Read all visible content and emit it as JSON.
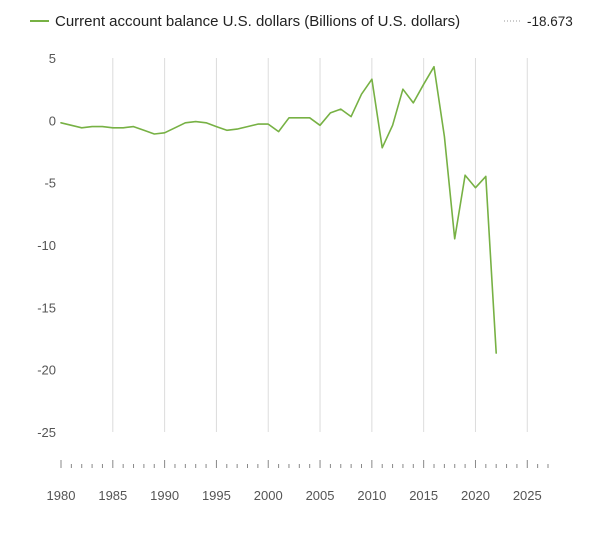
{
  "chart_data": {
    "type": "line",
    "legend": {
      "placement": "top-left",
      "series_label": "Current account balance U.S. dollars (Billions of U.S. dollars)",
      "value_label": "-18.673"
    },
    "series": [
      {
        "name": "Current account balance U.S. dollars (Billions of U.S. dollars)",
        "color": "#77b144",
        "x": [
          1980,
          1981,
          1982,
          1983,
          1984,
          1985,
          1986,
          1987,
          1988,
          1989,
          1990,
          1991,
          1992,
          1993,
          1994,
          1995,
          1996,
          1997,
          1998,
          1999,
          2000,
          2001,
          2002,
          2003,
          2004,
          2005,
          2006,
          2007,
          2008,
          2009,
          2010,
          2011,
          2012,
          2013,
          2014,
          2015,
          2016,
          2017,
          2018,
          2019,
          2020,
          2021,
          2022
        ],
        "values": [
          -0.2,
          -0.4,
          -0.6,
          -0.5,
          -0.5,
          -0.6,
          -0.6,
          -0.5,
          -0.8,
          -1.1,
          -1.0,
          -0.6,
          -0.2,
          -0.1,
          -0.2,
          -0.5,
          -0.8,
          -0.7,
          -0.5,
          -0.3,
          -0.3,
          -0.9,
          0.2,
          0.2,
          0.2,
          -0.4,
          0.6,
          0.9,
          0.3,
          2.1,
          3.3,
          -2.2,
          -0.4,
          2.5,
          1.4,
          2.9,
          4.3,
          -1.3,
          -9.5,
          -4.4,
          -5.4,
          -4.5,
          -18.673
        ]
      }
    ],
    "y_ticks": [
      "5",
      "0",
      "-5",
      "-10",
      "-15",
      "-20",
      "-25"
    ],
    "x_ticks": [
      "1980",
      "1985",
      "1990",
      "1995",
      "2000",
      "2005",
      "2010",
      "2015",
      "2020",
      "2025"
    ],
    "xlim": [
      1980,
      2027
    ],
    "ylim": [
      -25,
      5
    ],
    "grid": "vertical"
  }
}
